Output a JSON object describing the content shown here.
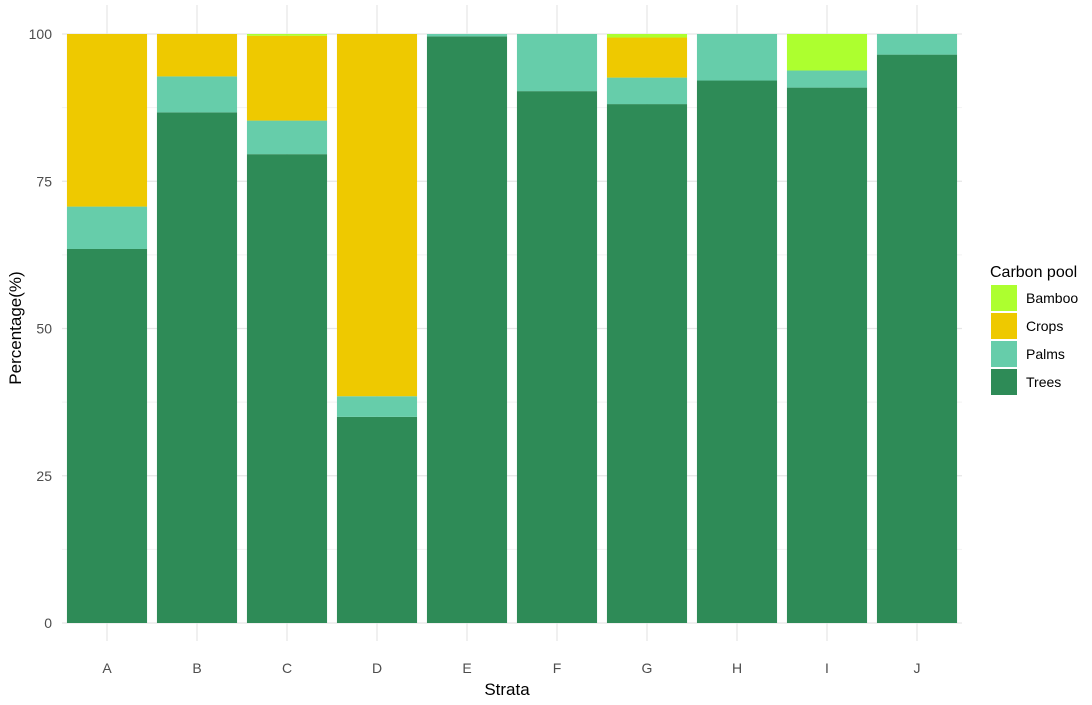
{
  "chart_data": {
    "type": "bar",
    "stacked": true,
    "title": "",
    "xlabel": "Strata",
    "ylabel": "Percentage(%)",
    "ylim": [
      0,
      100
    ],
    "yticks": [
      0,
      25,
      50,
      75,
      100
    ],
    "grid": true,
    "legend_position": "right",
    "legend_title": "Carbon pool",
    "categories": [
      "A",
      "B",
      "C",
      "D",
      "E",
      "F",
      "G",
      "H",
      "I",
      "J"
    ],
    "series": [
      {
        "name": "Trees",
        "color": "#2e8b57",
        "values": [
          63.5,
          86.7,
          79.6,
          35.0,
          99.6,
          90.3,
          88.1,
          92.1,
          90.9,
          96.5
        ]
      },
      {
        "name": "Palms",
        "color": "#66cdaa",
        "values": [
          7.2,
          6.1,
          5.7,
          3.5,
          0.4,
          9.7,
          4.5,
          7.9,
          2.9,
          3.5
        ]
      },
      {
        "name": "Crops",
        "color": "#eec900",
        "values": [
          29.3,
          7.2,
          14.4,
          61.5,
          0,
          0,
          6.8,
          0,
          0,
          0
        ]
      },
      {
        "name": "Bamboo",
        "color": "#adff2f",
        "values": [
          0,
          0,
          0.3,
          0,
          0,
          0,
          0.6,
          0,
          6.2,
          0
        ]
      }
    ],
    "legend_order": [
      "Bamboo",
      "Crops",
      "Palms",
      "Trees"
    ]
  }
}
